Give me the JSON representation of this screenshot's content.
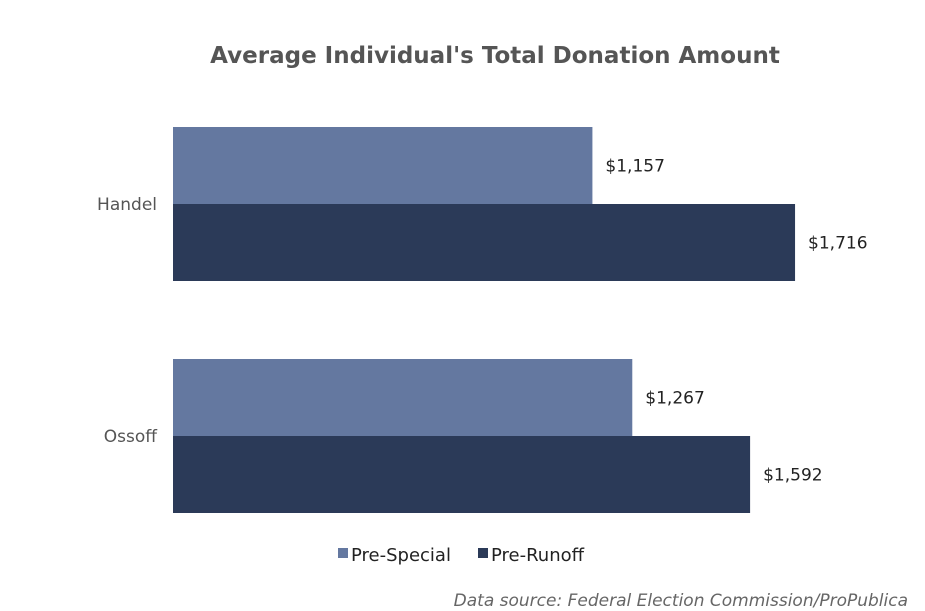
{
  "chart_data": {
    "type": "bar",
    "orientation": "horizontal",
    "title": "Average Individual's Total Donation Amount",
    "categories": [
      "Handel",
      "Ossoff"
    ],
    "series": [
      {
        "name": "Pre-Special",
        "color": "#6478a0",
        "values": [
          1157,
          1267
        ],
        "labels": [
          "$1,157",
          "$1,267"
        ]
      },
      {
        "name": "Pre-Runoff",
        "color": "#2b3a58",
        "values": [
          1716,
          1592
        ],
        "labels": [
          "$1,716",
          "$1,592"
        ]
      }
    ],
    "xlim": [
      0,
      2000
    ],
    "grid": false,
    "legend_position": "bottom-center",
    "source": "Data source: Federal Election Commission/ProPublica"
  }
}
